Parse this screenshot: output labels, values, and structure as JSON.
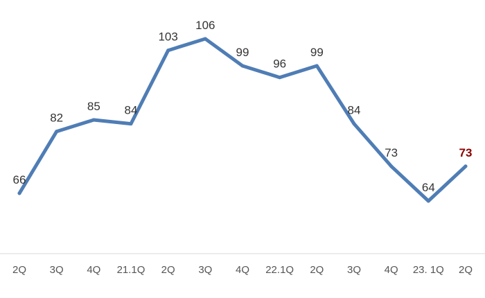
{
  "chart_data": {
    "type": "line",
    "categories": [
      "2Q",
      "3Q",
      "4Q",
      "21.1Q",
      "2Q",
      "3Q",
      "4Q",
      "22.1Q",
      "2Q",
      "3Q",
      "4Q",
      "23. 1Q",
      "2Q"
    ],
    "series": [
      {
        "values": [
          66,
          82,
          85,
          84,
          103,
          106,
          99,
          96,
          99,
          84,
          73,
          64,
          73
        ]
      }
    ],
    "data_labels": [
      "66",
      "82",
      "85",
      "84",
      "103",
      "106",
      "99",
      "96",
      "99",
      "84",
      "73",
      "64",
      "73"
    ],
    "highlight_last_label": true,
    "line_color": "#4f7db5",
    "highlight_color": "#8b0000",
    "axis_color": "#d9d9d9",
    "grid": false,
    "legend": "none"
  }
}
